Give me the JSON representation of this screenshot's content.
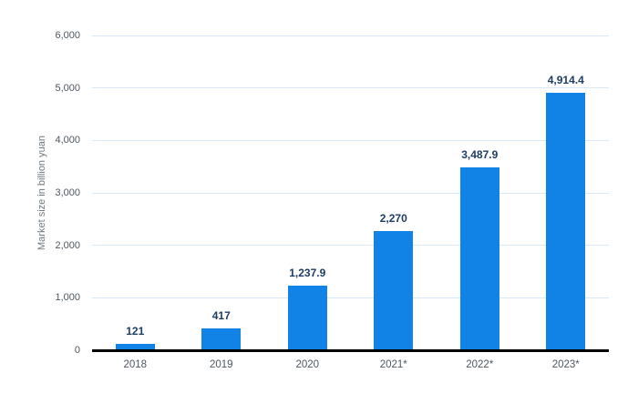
{
  "chart_data": {
    "type": "bar",
    "categories": [
      "2018",
      "2019",
      "2020",
      "2021*",
      "2022*",
      "2023*"
    ],
    "values": [
      121,
      417,
      1237.9,
      2270,
      3487.9,
      4914.4
    ],
    "value_labels": [
      "121",
      "417",
      "1,237.9",
      "2,270",
      "3,487.9",
      "4,914.4"
    ],
    "title": "",
    "xlabel": "",
    "ylabel": "Market size in billion yuan",
    "ylim": [
      0,
      6000
    ],
    "ytick_step": 1000,
    "ytick_labels": [
      "0",
      "1,000",
      "2,000",
      "3,000",
      "4,000",
      "5,000",
      "6,000"
    ],
    "grid": true,
    "legend": false,
    "colors": {
      "bar": "#1183e6",
      "gridline": "#d9e8f6",
      "axis": "#000000",
      "value_label": "#1d3d63",
      "tick_label": "#4d5660",
      "y_title": "#6e7880",
      "background": "#ffffff"
    }
  }
}
